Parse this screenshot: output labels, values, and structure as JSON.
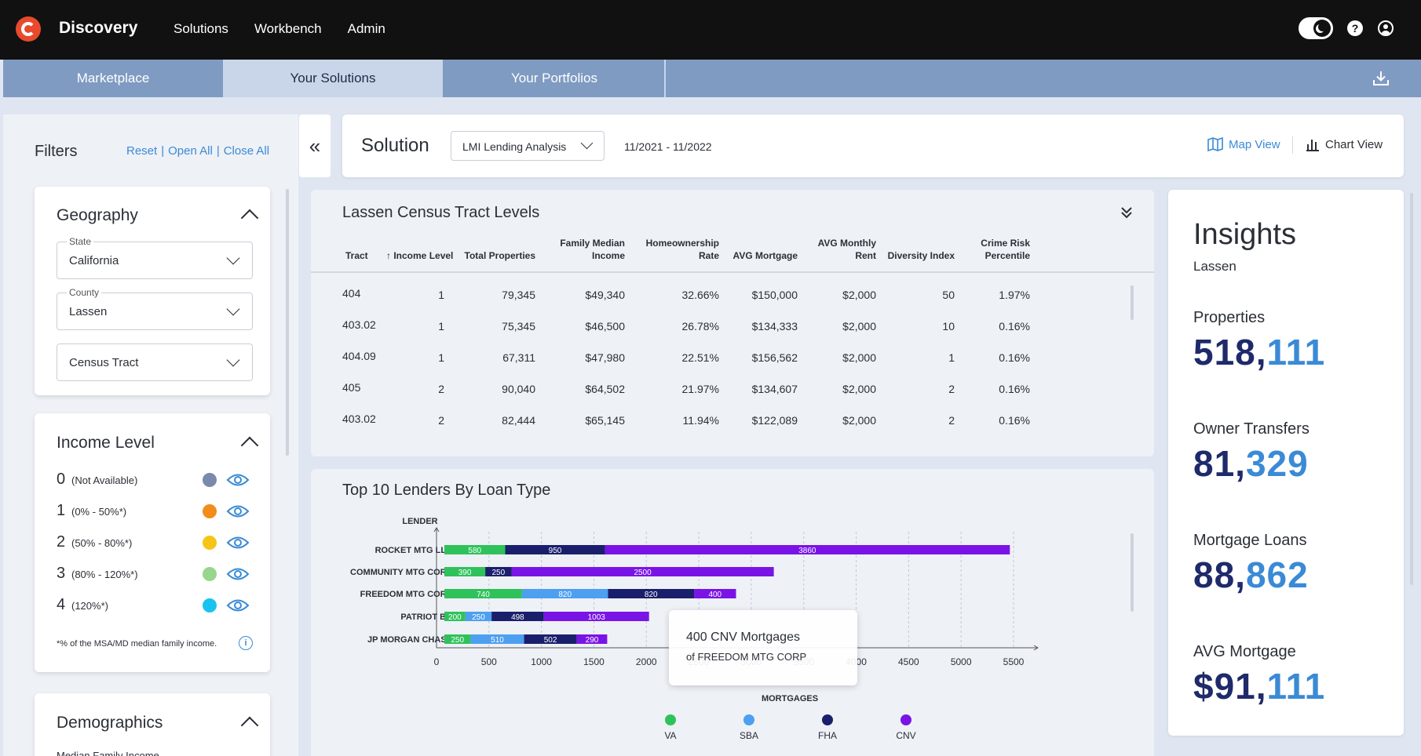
{
  "app": {
    "brand": "Discovery",
    "nav": [
      "Solutions",
      "Workbench",
      "Admin"
    ]
  },
  "tabs": [
    "Marketplace",
    "Your Solutions",
    "Your Portfolios"
  ],
  "filters": {
    "title": "Filters",
    "reset": "Reset",
    "open_all": "Open All",
    "close_all": "Close All",
    "sep": "|",
    "geography": {
      "title": "Geography",
      "state_label": "State",
      "state_value": "California",
      "county_label": "County",
      "county_value": "Lassen",
      "tract_value": "Census Tract"
    },
    "income": {
      "title": "Income Level",
      "levels": [
        {
          "num": "0",
          "range": "(Not Available)",
          "color": "#7a89ad"
        },
        {
          "num": "1",
          "range": "(0% - 50%*)",
          "color": "#f28c1a"
        },
        {
          "num": "2",
          "range": "(50% - 80%*)",
          "color": "#f5c518"
        },
        {
          "num": "3",
          "range": "(80% - 120%*)",
          "color": "#97d68b"
        },
        {
          "num": "4",
          "range": "(120%*)",
          "color": "#19c3ef"
        }
      ],
      "footnote": "*% of the MSA/MD median family income.",
      "info": "i"
    },
    "demographics": {
      "title": "Demographics",
      "sub": "Median Family Income"
    }
  },
  "solution": {
    "label": "Solution",
    "select_value": "LMI Lending Analysis",
    "date_range": "11/2021 - 11/2022",
    "map_view": "Map View",
    "chart_view": "Chart View"
  },
  "table": {
    "title": "Lassen Census Tract Levels",
    "headers": {
      "tract": "Tract",
      "income": "Income Level",
      "props": "Total Properties",
      "fmi1": "Family Median",
      "fmi2": "Income",
      "home1": "Homeownership",
      "home2": "Rate",
      "mort": "AVG Mortgage",
      "rent1": "AVG Monthly",
      "rent2": "Rent",
      "div": "Diversity Index",
      "crime1": "Crime Risk",
      "crime2": "Percentile"
    },
    "rows": [
      {
        "tract": "404",
        "income": "1",
        "props": "79,345",
        "fmi": "$49,340",
        "home": "32.66%",
        "mort": "$150,000",
        "rent": "$2,000",
        "div": "50",
        "crime": "1.97%"
      },
      {
        "tract": "403.02",
        "income": "1",
        "props": "75,345",
        "fmi": "$46,500",
        "home": "26.78%",
        "mort": "$134,333",
        "rent": "$2,000",
        "div": "10",
        "crime": "0.16%"
      },
      {
        "tract": "404.09",
        "income": "1",
        "props": "67,311",
        "fmi": "$47,980",
        "home": "22.51%",
        "mort": "$156,562",
        "rent": "$2,000",
        "div": "1",
        "crime": "0.16%"
      },
      {
        "tract": "405",
        "income": "2",
        "props": "90,040",
        "fmi": "$64,502",
        "home": "21.97%",
        "mort": "$134,607",
        "rent": "$2,000",
        "div": "2",
        "crime": "0.16%"
      },
      {
        "tract": "403.02",
        "income": "2",
        "props": "82,444",
        "fmi": "$65,145",
        "home": "11.94%",
        "mort": "$122,089",
        "rent": "$2,000",
        "div": "2",
        "crime": "0.16%"
      }
    ]
  },
  "chart_data": {
    "type": "bar",
    "stacked": true,
    "orientation": "horizontal",
    "title": "Top 10 Lenders By Loan Type",
    "ylabel": "LENDER",
    "xlabel": "MORTGAGES",
    "xlim": [
      0,
      5500
    ],
    "xticks": [
      0,
      500,
      1000,
      1500,
      2000,
      2500,
      3000,
      3500,
      4000,
      4500,
      5000,
      5500
    ],
    "grid": true,
    "legend_position": "bottom",
    "categories": [
      "ROCKET MTG LLC",
      "COMMUNITY MTG CORP",
      "FREEDOM MTG CORP",
      "PATRIOT BK",
      "JP MORGAN CHASE"
    ],
    "series": [
      {
        "name": "VA",
        "color": "#2fc25b",
        "values": [
          580,
          390,
          740,
          200,
          250
        ]
      },
      {
        "name": "SBA",
        "color": "#4d9ff0",
        "values": [
          0,
          0,
          820,
          250,
          510
        ]
      },
      {
        "name": "FHA",
        "color": "#1a1f6b",
        "values": [
          950,
          250,
          820,
          498,
          502
        ]
      },
      {
        "name": "CNV",
        "color": "#7a14e6",
        "values": [
          3860,
          2500,
          400,
          1003,
          290
        ]
      }
    ]
  },
  "tooltip": {
    "line1": "400 CNV Mortgages",
    "line2_prefix": "of",
    "line2_name": "FREEDOM MTG CORP"
  },
  "insights": {
    "title": "Insights",
    "sub": "Lassen",
    "metrics": [
      {
        "label": "Properties",
        "a": "518,",
        "b": "111"
      },
      {
        "label": "Owner Transfers",
        "a": "81,",
        "b": "329"
      },
      {
        "label": "Mortgage Loans",
        "a": "88,",
        "b": "862"
      },
      {
        "label": "AVG Mortgage",
        "a": "$91,",
        "b": "111"
      }
    ]
  }
}
